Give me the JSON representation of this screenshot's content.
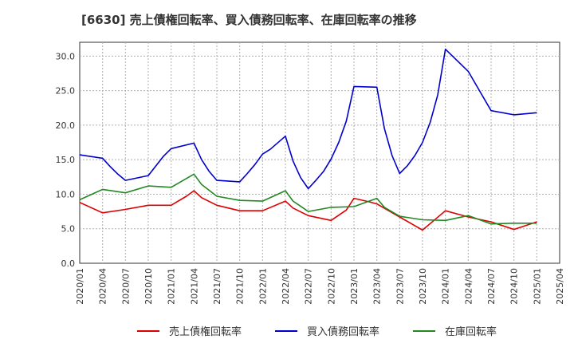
{
  "chart_data": {
    "type": "line",
    "title": "[6630]  売上債権回転率、買入債務回転率、在庫回転率の推移",
    "xlabel": "",
    "ylabel": "",
    "ylim": [
      0,
      32
    ],
    "yticks": [
      0.0,
      5.0,
      10.0,
      15.0,
      20.0,
      25.0,
      30.0
    ],
    "ytick_labels": [
      "0.0",
      "5.0",
      "10.0",
      "15.0",
      "20.0",
      "25.0",
      "30.0"
    ],
    "xlim_months": [
      0,
      63
    ],
    "xticks_months": [
      0,
      3,
      6,
      9,
      12,
      15,
      18,
      21,
      24,
      27,
      30,
      33,
      36,
      39,
      42,
      45,
      48,
      51,
      54,
      57,
      60,
      63
    ],
    "xtick_labels": [
      "2020/01",
      "2020/04",
      "2020/07",
      "2020/10",
      "2021/01",
      "2021/04",
      "2021/07",
      "2021/10",
      "2022/01",
      "2022/04",
      "2022/07",
      "2022/10",
      "2023/01",
      "2023/04",
      "2023/07",
      "2023/10",
      "2024/01",
      "2024/04",
      "2024/07",
      "2024/10",
      "2025/01",
      "2025/04"
    ],
    "grid": true,
    "legend_position": "bottom",
    "series": [
      {
        "name": "売上債権回転率",
        "color": "#dd0000",
        "months": [
          0,
          3,
          6,
          9,
          12,
          14,
          15,
          16,
          18,
          21,
          24,
          27,
          28,
          30,
          33,
          35,
          36,
          38,
          39,
          42,
          45,
          48,
          50,
          51,
          54,
          57,
          60
        ],
        "values": [
          8.8,
          7.3,
          7.8,
          8.4,
          8.4,
          9.7,
          10.5,
          9.5,
          8.4,
          7.6,
          7.6,
          9.0,
          8.0,
          6.9,
          6.2,
          7.7,
          9.4,
          8.9,
          8.6,
          6.7,
          4.8,
          7.6,
          7.0,
          6.7,
          6.0,
          4.9,
          6.0
        ]
      },
      {
        "name": "買入債務回転率",
        "color": "#0000cc",
        "months": [
          0,
          3,
          4,
          5,
          6,
          9,
          10,
          11,
          12,
          15,
          16,
          17,
          18,
          21,
          22,
          23,
          24,
          25,
          27,
          28,
          29,
          30,
          31,
          32,
          33,
          34,
          35,
          36,
          39,
          40,
          41,
          42,
          43,
          44,
          45,
          46,
          47,
          48,
          51,
          54,
          57,
          60
        ],
        "values": [
          15.7,
          15.2,
          14.0,
          12.9,
          12.0,
          12.7,
          14.1,
          15.5,
          16.6,
          17.4,
          15.0,
          13.3,
          12.0,
          11.8,
          13.0,
          14.3,
          15.8,
          16.5,
          18.4,
          14.8,
          12.4,
          10.8,
          12.0,
          13.3,
          15.1,
          17.5,
          20.6,
          25.6,
          25.5,
          19.5,
          15.6,
          13.0,
          14.1,
          15.6,
          17.5,
          20.4,
          24.4,
          31.0,
          27.8,
          22.1,
          21.5,
          21.8
        ]
      },
      {
        "name": "在庫回転率",
        "color": "#228822",
        "months": [
          0,
          3,
          6,
          9,
          12,
          15,
          16,
          18,
          21,
          24,
          27,
          28,
          30,
          33,
          36,
          39,
          40,
          42,
          45,
          48,
          51,
          54,
          57,
          60
        ],
        "values": [
          9.2,
          10.7,
          10.2,
          11.2,
          11.0,
          12.9,
          11.4,
          9.7,
          9.1,
          9.0,
          10.5,
          9.0,
          7.5,
          8.1,
          8.2,
          9.4,
          8.1,
          6.8,
          6.3,
          6.2,
          6.9,
          5.7,
          5.8,
          5.8
        ]
      }
    ]
  }
}
